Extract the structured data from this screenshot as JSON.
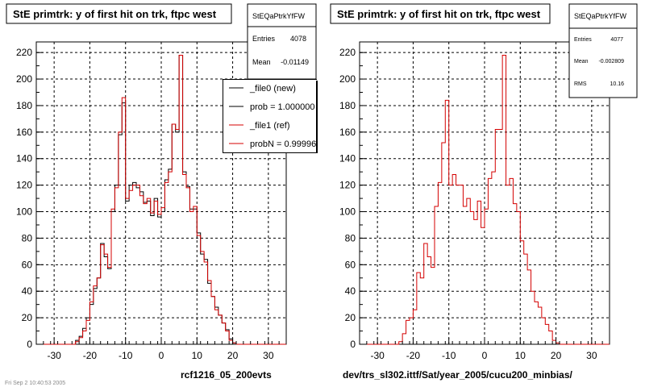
{
  "footer_text": "Fri Sep 2 10:40:53 2005",
  "colors": {
    "new": "#000000",
    "ref": "#d40000",
    "grid": "#000000"
  },
  "chart_data": [
    {
      "type": "bar",
      "title": "StE primtrk: y of first hit on trk, ftpc west",
      "stats_name": "StEQaPtrkYfFW",
      "stats": [
        {
          "label": "Entries",
          "value": "4078"
        },
        {
          "label": "Mean",
          "value": "-0.01149"
        }
      ],
      "legend": [
        {
          "label": "_file0 (new)",
          "color": "#000000"
        },
        {
          "label": "prob = 1.000000",
          "color": "#000000"
        },
        {
          "label": "_file1 (ref)",
          "color": "#d40000"
        },
        {
          "label": "probN = 0.999962",
          "color": "#d40000"
        }
      ],
      "caption": "rcf1216_05_200evts",
      "xlim": [
        -35,
        35
      ],
      "ylim": [
        0,
        228
      ],
      "xticks": [
        -30,
        -20,
        -10,
        0,
        10,
        20,
        30
      ],
      "yticks": [
        0,
        20,
        40,
        60,
        80,
        100,
        120,
        140,
        160,
        180,
        200,
        220
      ],
      "grid": true,
      "bin_edges_start": -35,
      "bin_width": 1,
      "series": [
        {
          "name": "_file0 (new)",
          "color": "#000000",
          "values": [
            0,
            0,
            0,
            0,
            0,
            0,
            0,
            0,
            0,
            0,
            0,
            3,
            6,
            12,
            20,
            30,
            42,
            50,
            76,
            66,
            57,
            100,
            120,
            158,
            182,
            108,
            120,
            122,
            118,
            115,
            107,
            108,
            97,
            110,
            96,
            100,
            124,
            132,
            166,
            160,
            218,
            130,
            119,
            102,
            102,
            84,
            68,
            64,
            46,
            36,
            28,
            22,
            16,
            11,
            4,
            1,
            0,
            0,
            0,
            0,
            0,
            0,
            0,
            0,
            0,
            0,
            0,
            0,
            0,
            0
          ]
        },
        {
          "name": "_file1 (ref)",
          "color": "#d40000",
          "values": [
            0,
            0,
            0,
            0,
            0,
            0,
            0,
            0,
            0,
            0,
            0,
            2,
            5,
            10,
            18,
            32,
            44,
            50,
            75,
            68,
            58,
            102,
            118,
            160,
            186,
            110,
            116,
            120,
            120,
            112,
            106,
            110,
            99,
            108,
            98,
            103,
            122,
            130,
            166,
            162,
            218,
            128,
            118,
            100,
            104,
            82,
            70,
            62,
            48,
            36,
            26,
            22,
            16,
            10,
            3,
            1,
            0,
            0,
            0,
            0,
            0,
            0,
            0,
            0,
            0,
            0,
            0,
            0,
            0,
            0
          ]
        }
      ]
    },
    {
      "type": "bar",
      "title": "StE primtrk: y of first hit on trk, ftpc west",
      "stats_name": "StEQaPtrkYfFW",
      "stats": [
        {
          "label": "Entries",
          "value": "4077"
        },
        {
          "label": "Mean",
          "value": "-0.002809"
        },
        {
          "label": "RMS",
          "value": "10.16"
        }
      ],
      "caption": "dev/trs_sl302.ittf/Sat/year_2005/cucu200_minbias/",
      "xlim": [
        -35,
        35
      ],
      "ylim": [
        0,
        228
      ],
      "xticks": [
        -30,
        -20,
        -10,
        0,
        10,
        20,
        30
      ],
      "yticks": [
        0,
        20,
        40,
        60,
        80,
        100,
        120,
        140,
        160,
        180,
        200,
        220
      ],
      "grid": true,
      "bin_edges_start": -35,
      "bin_width": 1,
      "series": [
        {
          "name": "ref",
          "color": "#d40000",
          "values": [
            0,
            0,
            0,
            0,
            0,
            0,
            0,
            0,
            0,
            0,
            0,
            2,
            8,
            18,
            20,
            26,
            54,
            50,
            76,
            66,
            58,
            104,
            122,
            152,
            184,
            120,
            128,
            120,
            120,
            104,
            110,
            100,
            94,
            108,
            88,
            102,
            125,
            130,
            162,
            162,
            218,
            120,
            125,
            106,
            100,
            78,
            68,
            56,
            40,
            32,
            28,
            20,
            15,
            10,
            3,
            1,
            0,
            0,
            0,
            0,
            0,
            0,
            0,
            0,
            0,
            0,
            0,
            0,
            0,
            0
          ]
        }
      ]
    }
  ]
}
